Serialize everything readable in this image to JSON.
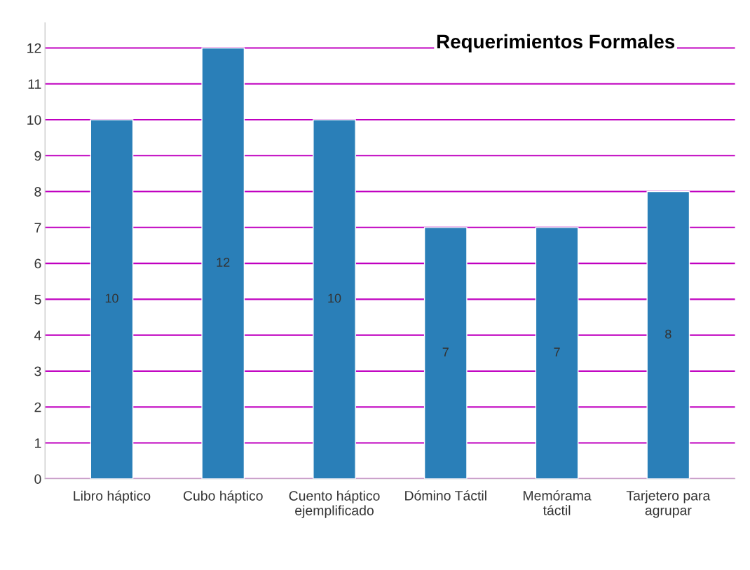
{
  "chart_data": {
    "type": "bar",
    "title": "Requerimientos Formales",
    "categories": [
      "Libro háptico",
      "Cubo háptico",
      "Cuento háptico ejemplificado",
      "Dómino Táctil",
      "Memórama táctil",
      "Tarjetero para agrupar"
    ],
    "values": [
      10,
      12,
      10,
      7,
      7,
      8
    ],
    "color": "#2a7fb8",
    "ylim": [
      0,
      12.7
    ],
    "yticks": [
      0,
      1,
      2,
      3,
      4,
      5,
      6,
      7,
      8,
      9,
      10,
      11,
      12
    ],
    "grid": "y",
    "data_labels": true
  }
}
